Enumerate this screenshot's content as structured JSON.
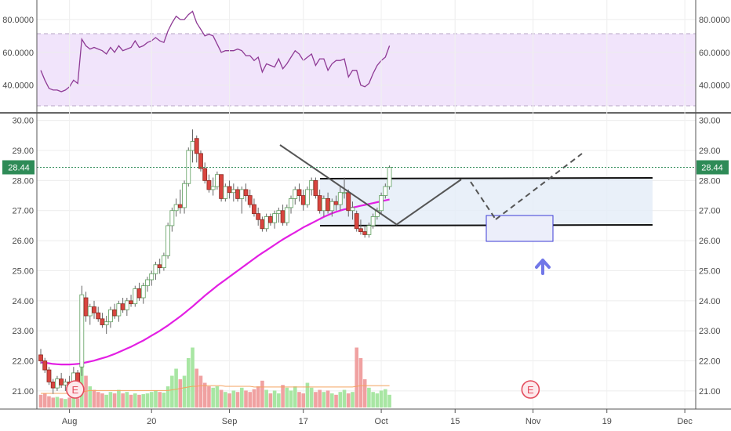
{
  "chart_data": {
    "type": "candlestick",
    "colors": {
      "up": "#ffffff",
      "up_border": "#5e9e5e",
      "down": "#d9453f",
      "down_border": "#8a2a24",
      "wick": "#666666",
      "ma": "#e31fe3",
      "rsi": "#8e3a95",
      "rsi_band": "#f1e4fb",
      "vol_up": "#a8e6a3",
      "vol_down": "#f0a1a1",
      "vol_ma": "#f4a15d",
      "range_box": "#e3ecf8",
      "price_line": "#2e8b57",
      "arrow": "#7177e8"
    },
    "rsi": {
      "ticks": [
        "80.0000",
        "60.0000",
        "40.0000"
      ],
      "tick_values": [
        80,
        60,
        40
      ],
      "ylim": [
        25,
        90
      ],
      "upper_band": 70,
      "lower_band": 30,
      "values": [
        49,
        43,
        38,
        37,
        37,
        36,
        37,
        39,
        43,
        41,
        68,
        64,
        62,
        63,
        62,
        61,
        59,
        63,
        60,
        64,
        61,
        62,
        63,
        67,
        63,
        64,
        66,
        67,
        69,
        67,
        66,
        73,
        78,
        82,
        80,
        80,
        83,
        85,
        78,
        74,
        70,
        71,
        70,
        65,
        60,
        61,
        61,
        61,
        62,
        61,
        58,
        58,
        55,
        57,
        48,
        53,
        52,
        51,
        56,
        50,
        53,
        57,
        61,
        59,
        55,
        57,
        59,
        52,
        56,
        56,
        49,
        53,
        55,
        55,
        56,
        45,
        49,
        49,
        40,
        39,
        41,
        47,
        52,
        55,
        57,
        64
      ]
    },
    "price": {
      "ticks": [
        "30.00",
        "29.00",
        "28.00",
        "27.00",
        "26.00",
        "25.00",
        "24.00",
        "23.00",
        "22.00",
        "21.00"
      ],
      "tick_values": [
        30,
        29,
        28,
        27,
        26,
        25,
        24,
        23,
        22,
        21
      ],
      "ylim": [
        20.45,
        30.2
      ],
      "last_price": "28.44",
      "last_value": 28.44,
      "ohlc": [
        [
          22.2,
          22.4,
          21.9,
          22.0
        ],
        [
          22.0,
          22.1,
          21.6,
          21.7
        ],
        [
          21.7,
          21.8,
          21.2,
          21.3
        ],
        [
          21.3,
          21.4,
          20.9,
          21.1
        ],
        [
          21.1,
          21.5,
          21.0,
          21.4
        ],
        [
          21.4,
          21.6,
          21.1,
          21.2
        ],
        [
          21.2,
          21.4,
          21.0,
          21.3
        ],
        [
          21.3,
          21.5,
          21.1,
          21.2
        ],
        [
          21.2,
          21.8,
          21.0,
          21.6
        ],
        [
          21.6,
          21.7,
          21.2,
          21.3
        ],
        [
          21.8,
          24.5,
          21.5,
          24.2
        ],
        [
          24.1,
          24.3,
          23.3,
          23.5
        ],
        [
          23.5,
          23.9,
          23.2,
          23.8
        ],
        [
          23.8,
          24.0,
          23.4,
          23.6
        ],
        [
          23.6,
          23.8,
          23.3,
          23.4
        ],
        [
          23.4,
          23.6,
          23.1,
          23.2
        ],
        [
          23.2,
          23.5,
          22.9,
          23.3
        ],
        [
          23.3,
          23.8,
          23.1,
          23.7
        ],
        [
          23.7,
          23.9,
          23.4,
          23.5
        ],
        [
          23.5,
          24.0,
          23.3,
          23.9
        ],
        [
          23.9,
          24.1,
          23.6,
          23.7
        ],
        [
          23.7,
          24.1,
          23.5,
          24.0
        ],
        [
          24.0,
          24.2,
          23.8,
          23.9
        ],
        [
          23.9,
          24.5,
          23.8,
          24.4
        ],
        [
          24.4,
          24.6,
          24.0,
          24.1
        ],
        [
          24.1,
          24.6,
          23.9,
          24.5
        ],
        [
          24.5,
          24.8,
          24.3,
          24.7
        ],
        [
          24.7,
          25.0,
          24.5,
          24.9
        ],
        [
          24.9,
          25.3,
          24.7,
          25.2
        ],
        [
          25.2,
          25.4,
          24.9,
          25.1
        ],
        [
          25.1,
          25.6,
          25.0,
          25.5
        ],
        [
          25.5,
          26.6,
          25.4,
          26.5
        ],
        [
          26.5,
          27.1,
          26.3,
          27.0
        ],
        [
          27.0,
          27.4,
          26.8,
          27.2
        ],
        [
          27.2,
          27.7,
          26.9,
          27.1
        ],
        [
          27.1,
          28.0,
          26.9,
          27.9
        ],
        [
          27.9,
          29.1,
          27.8,
          29.0
        ],
        [
          29.0,
          29.7,
          28.6,
          29.3
        ],
        [
          29.4,
          29.5,
          28.6,
          28.9
        ],
        [
          28.9,
          29.0,
          28.3,
          28.4
        ],
        [
          28.4,
          28.6,
          27.9,
          28.0
        ],
        [
          28.0,
          28.2,
          27.6,
          27.7
        ],
        [
          27.7,
          28.1,
          27.5,
          27.8
        ],
        [
          27.8,
          28.3,
          27.7,
          28.2
        ],
        [
          28.2,
          28.2,
          27.3,
          27.4
        ],
        [
          27.4,
          27.9,
          27.3,
          27.8
        ],
        [
          27.8,
          28.0,
          27.4,
          27.6
        ],
        [
          27.6,
          27.9,
          27.3,
          27.7
        ],
        [
          27.7,
          27.8,
          27.3,
          27.4
        ],
        [
          27.4,
          27.8,
          26.9,
          27.7
        ],
        [
          27.7,
          27.9,
          27.3,
          27.5
        ],
        [
          27.5,
          27.7,
          27.1,
          27.2
        ],
        [
          27.2,
          27.4,
          26.8,
          26.9
        ],
        [
          26.9,
          27.1,
          26.5,
          26.7
        ],
        [
          26.7,
          26.8,
          26.3,
          26.4
        ],
        [
          26.4,
          26.9,
          26.3,
          26.8
        ],
        [
          26.8,
          26.9,
          26.5,
          26.6
        ],
        [
          26.6,
          27.0,
          26.4,
          26.9
        ],
        [
          26.9,
          27.1,
          26.6,
          27.0
        ],
        [
          27.0,
          27.2,
          26.5,
          26.6
        ],
        [
          26.6,
          27.2,
          26.5,
          27.1
        ],
        [
          27.1,
          27.5,
          26.9,
          27.4
        ],
        [
          27.4,
          27.8,
          27.2,
          27.7
        ],
        [
          27.7,
          27.9,
          27.3,
          27.5
        ],
        [
          27.5,
          27.7,
          27.0,
          27.2
        ],
        [
          27.2,
          27.8,
          27.1,
          27.7
        ],
        [
          27.7,
          28.1,
          27.5,
          28.0
        ],
        [
          28.0,
          28.1,
          27.4,
          27.5
        ],
        [
          27.5,
          27.7,
          26.9,
          27.0
        ],
        [
          27.0,
          27.5,
          26.8,
          27.4
        ],
        [
          27.4,
          27.6,
          26.9,
          27.0
        ],
        [
          27.0,
          27.4,
          26.8,
          27.3
        ],
        [
          27.3,
          27.5,
          27.0,
          27.2
        ],
        [
          27.2,
          27.8,
          27.0,
          27.6
        ],
        [
          27.6,
          28.1,
          27.4,
          27.6
        ],
        [
          27.6,
          27.7,
          26.8,
          27.0
        ],
        [
          27.0,
          27.3,
          26.7,
          27.1
        ],
        [
          26.9,
          27.0,
          26.3,
          26.4
        ],
        [
          26.4,
          26.7,
          26.2,
          26.3
        ],
        [
          26.3,
          26.5,
          26.1,
          26.2
        ],
        [
          26.2,
          26.6,
          26.1,
          26.5
        ],
        [
          26.5,
          26.9,
          26.4,
          26.8
        ],
        [
          26.8,
          27.1,
          26.7,
          27.0
        ],
        [
          27.0,
          27.6,
          26.9,
          27.5
        ],
        [
          27.5,
          27.9,
          27.4,
          27.8
        ],
        [
          27.8,
          28.5,
          27.7,
          28.44
        ]
      ],
      "ma": [
        21.95,
        21.94,
        21.92,
        21.9,
        21.89,
        21.88,
        21.88,
        21.88,
        21.89,
        21.9,
        21.92,
        21.95,
        21.98,
        22.01,
        22.05,
        22.09,
        22.13,
        22.18,
        22.23,
        22.29,
        22.35,
        22.41,
        22.47,
        22.54,
        22.61,
        22.68,
        22.76,
        22.84,
        22.92,
        23.0,
        23.09,
        23.18,
        23.28,
        23.38,
        23.48,
        23.59,
        23.7,
        23.81,
        23.93,
        24.05,
        24.17,
        24.28,
        24.39,
        24.5,
        24.6,
        24.7,
        24.8,
        24.9,
        25.0,
        25.1,
        25.2,
        25.3,
        25.4,
        25.5,
        25.59,
        25.68,
        25.77,
        25.86,
        25.95,
        26.04,
        26.12,
        26.2,
        26.28,
        26.36,
        26.44,
        26.51,
        26.58,
        26.65,
        26.72,
        26.79,
        26.85,
        26.91,
        26.96,
        27.0,
        27.04,
        27.07,
        27.1,
        27.13,
        27.16,
        27.19,
        27.22,
        27.25,
        27.28,
        27.31,
        27.34,
        27.37
      ],
      "volume": [
        18,
        20,
        16,
        14,
        15,
        13,
        12,
        14,
        15,
        13,
        90,
        45,
        30,
        25,
        22,
        20,
        18,
        22,
        20,
        25,
        20,
        22,
        18,
        20,
        18,
        19,
        20,
        22,
        24,
        22,
        21,
        30,
        45,
        55,
        40,
        45,
        70,
        85,
        55,
        45,
        35,
        30,
        28,
        30,
        25,
        22,
        20,
        24,
        22,
        28,
        24,
        22,
        26,
        30,
        38,
        25,
        20,
        24,
        20,
        32,
        28,
        24,
        30,
        22,
        20,
        35,
        28,
        22,
        25,
        22,
        24,
        20,
        18,
        22,
        25,
        20,
        22,
        85,
        70,
        40,
        28,
        22,
        20,
        24,
        26,
        18
      ],
      "vol_ma": [
        20,
        20,
        20,
        20,
        20,
        20,
        20,
        20,
        20,
        20,
        22,
        23,
        24,
        24,
        24,
        24,
        24,
        24,
        24,
        24,
        24,
        24,
        24,
        24,
        24,
        24,
        24,
        24,
        24,
        24,
        24,
        24,
        25,
        26,
        27,
        28,
        29,
        30,
        30,
        31,
        31,
        31,
        31,
        31,
        31,
        30,
        30,
        30,
        30,
        30,
        30,
        30,
        29,
        29,
        29,
        29,
        29,
        29,
        29,
        29,
        29,
        29,
        29,
        29,
        29,
        29,
        29,
        29,
        29,
        29,
        29,
        29,
        29,
        29,
        29,
        29,
        29,
        30,
        31,
        31,
        31,
        31,
        31,
        31,
        31,
        31
      ]
    },
    "x_ticks": [
      "Aug",
      "20",
      "Sep",
      "17",
      "Oct",
      "15",
      "Nov",
      "19",
      "Dec"
    ],
    "x_tick_days": [
      7,
      27,
      46,
      64,
      83,
      101,
      120,
      138,
      157
    ],
    "earnings_label": "E",
    "earnings_days": [
      8,
      119
    ]
  }
}
